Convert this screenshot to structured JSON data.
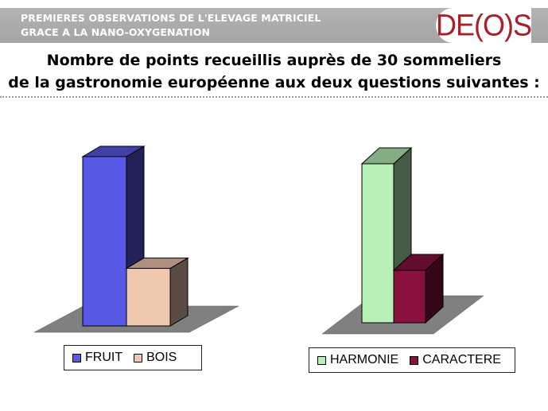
{
  "header": {
    "line1": "PREMIERES OBSERVATIONS DE L'ELEVAGE MATRICIEL",
    "line2": "GRACE A LA NANO-OXYGENATION",
    "logo": "DE(O)S"
  },
  "title": {
    "line1": "Nombre de points recueillis auprès de 30 sommeliers",
    "line2": "de la gastronomie européenne aux deux questions suivantes :"
  },
  "chart_data": [
    {
      "type": "bar",
      "style": "3d",
      "categories": [
        "FRUIT",
        "BOIS"
      ],
      "values": [
        100,
        34
      ],
      "ylim": [
        0,
        100
      ],
      "grid": false,
      "legend_position": "bottom",
      "colors": [
        "#5959e8",
        "#f0c8b0"
      ]
    },
    {
      "type": "bar",
      "style": "3d",
      "categories": [
        "HARMONIE",
        "CARACTERE"
      ],
      "values": [
        100,
        33
      ],
      "ylim": [
        0,
        100
      ],
      "grid": false,
      "legend_position": "bottom",
      "colors": [
        "#b8f0b8",
        "#8a1040"
      ]
    }
  ],
  "colors": {
    "header_band": "#aaaaaa",
    "logo": "#a8202a",
    "floor": "#808080"
  }
}
